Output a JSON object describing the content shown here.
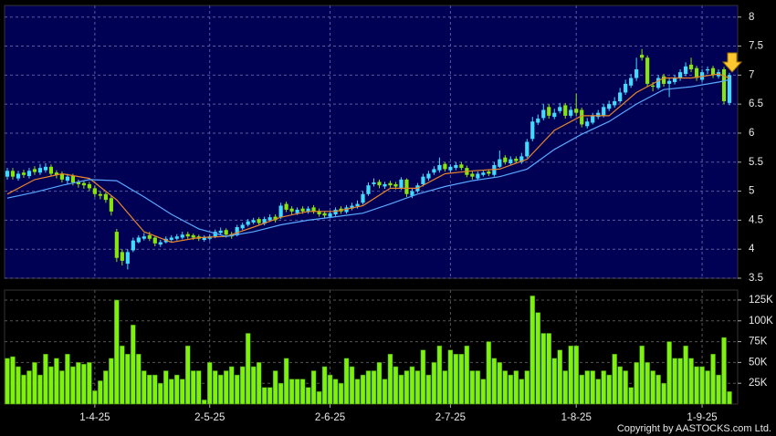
{
  "chart_data": [
    {
      "type": "candlestick",
      "xlim": [
        -0.5,
        133.5
      ],
      "ylim": [
        3.5,
        8.2
      ],
      "yticks": [
        3.5,
        4,
        4.5,
        5,
        5.5,
        6,
        6.5,
        7,
        7.5,
        8
      ],
      "grid": true,
      "up_color": "#3fdcff",
      "down_color": "#86e60c",
      "open": [
        5.25,
        5.35,
        5.22,
        5.32,
        5.26,
        5.38,
        5.32,
        5.36,
        5.42,
        5.32,
        5.3,
        5.18,
        5.26,
        5.16,
        5.14,
        5.12,
        5.05,
        4.95,
        4.95,
        4.88,
        4.3,
        3.95,
        3.75,
        3.98,
        4.12,
        4.18,
        4.24,
        4.2,
        4.08,
        4.12,
        4.16,
        4.18,
        4.2,
        4.26,
        4.24,
        4.22,
        4.16,
        4.18,
        4.22,
        4.28,
        4.33,
        4.26,
        4.24,
        4.36,
        4.42,
        4.46,
        4.52,
        4.44,
        4.5,
        4.56,
        4.55,
        4.78,
        4.7,
        4.62,
        4.7,
        4.64,
        4.72,
        4.66,
        4.62,
        4.56,
        4.6,
        4.7,
        4.64,
        4.7,
        4.74,
        4.8,
        4.95,
        5.12,
        5.16,
        5.08,
        5.14,
        5.12,
        5.05,
        5.2,
        4.92,
        5.0,
        5.12,
        5.22,
        5.32,
        5.36,
        5.47,
        5.36,
        5.4,
        5.46,
        5.4,
        5.3,
        5.22,
        5.28,
        5.34,
        5.28,
        5.42,
        5.58,
        5.48,
        5.56,
        5.5,
        5.6,
        5.9,
        6.18,
        6.26,
        6.45,
        6.28,
        6.38,
        6.48,
        6.3,
        6.42,
        6.4,
        6.12,
        6.18,
        6.28,
        6.3,
        6.42,
        6.48,
        6.55,
        6.7,
        6.82,
        6.95,
        7.35,
        7.3,
        6.82,
        6.78,
        6.98,
        6.85,
        6.88,
        6.95,
        7.02,
        7.18,
        7.12,
        6.92,
        7.08,
        7.12,
        6.98,
        7.1,
        6.52
      ],
      "high": [
        5.4,
        5.4,
        5.35,
        5.37,
        5.4,
        5.43,
        5.47,
        5.48,
        5.46,
        5.36,
        5.34,
        5.3,
        5.3,
        5.2,
        5.18,
        5.16,
        5.1,
        5.0,
        4.98,
        4.92,
        4.35,
        4.0,
        4.0,
        4.2,
        4.24,
        4.28,
        4.3,
        4.22,
        4.16,
        4.22,
        4.24,
        4.26,
        4.3,
        4.3,
        4.27,
        4.25,
        4.24,
        4.26,
        4.34,
        4.37,
        4.36,
        4.3,
        4.42,
        4.46,
        4.52,
        4.54,
        4.55,
        4.56,
        4.6,
        4.6,
        4.8,
        4.82,
        4.74,
        4.72,
        4.74,
        4.74,
        4.76,
        4.7,
        4.66,
        4.66,
        4.72,
        4.74,
        4.76,
        4.8,
        4.84,
        5.0,
        5.15,
        5.22,
        5.2,
        5.16,
        5.18,
        5.16,
        5.24,
        5.22,
        5.05,
        5.14,
        5.3,
        5.35,
        5.43,
        5.58,
        5.5,
        5.46,
        5.5,
        5.5,
        5.44,
        5.34,
        5.34,
        5.36,
        5.38,
        5.5,
        5.7,
        5.62,
        5.6,
        5.6,
        5.66,
        5.9,
        6.28,
        6.32,
        6.5,
        6.5,
        6.42,
        6.52,
        6.52,
        6.46,
        6.68,
        6.44,
        6.26,
        6.35,
        6.4,
        6.5,
        6.56,
        6.62,
        6.78,
        6.92,
        7.02,
        7.3,
        7.45,
        7.34,
        6.88,
        7.0,
        7.02,
        6.95,
        7.0,
        7.1,
        7.22,
        7.3,
        7.16,
        7.1,
        7.15,
        7.16,
        7.1,
        7.14,
        7.04
      ],
      "low": [
        5.2,
        5.2,
        5.18,
        5.23,
        5.22,
        5.28,
        5.28,
        5.32,
        5.25,
        5.22,
        5.15,
        5.12,
        5.1,
        5.06,
        5.04,
        5.0,
        4.9,
        4.86,
        4.8,
        4.58,
        3.78,
        3.72,
        3.65,
        3.95,
        4.1,
        4.15,
        4.14,
        4.05,
        4.04,
        4.1,
        4.12,
        4.15,
        4.17,
        4.18,
        4.16,
        4.14,
        4.13,
        4.15,
        4.19,
        4.25,
        4.2,
        4.18,
        4.22,
        4.33,
        4.39,
        4.43,
        4.41,
        4.41,
        4.47,
        4.46,
        4.52,
        4.64,
        4.6,
        4.59,
        4.61,
        4.61,
        4.61,
        4.56,
        4.54,
        4.53,
        4.57,
        4.61,
        4.61,
        4.67,
        4.7,
        4.77,
        4.92,
        5.08,
        5.05,
        5.04,
        5.06,
        5.03,
        5.02,
        4.9,
        4.88,
        4.97,
        5.08,
        5.18,
        5.28,
        5.32,
        5.34,
        5.32,
        5.36,
        5.36,
        5.24,
        5.2,
        5.19,
        5.25,
        5.26,
        5.25,
        5.4,
        5.46,
        5.45,
        5.48,
        5.47,
        5.57,
        5.86,
        6.14,
        6.22,
        6.25,
        6.24,
        6.34,
        6.25,
        6.26,
        6.3,
        6.1,
        6.08,
        6.15,
        6.24,
        6.27,
        6.38,
        6.44,
        6.52,
        6.66,
        6.78,
        6.9,
        7.25,
        6.8,
        6.72,
        6.75,
        6.8,
        6.62,
        6.84,
        6.9,
        6.98,
        7.05,
        6.9,
        6.88,
        7.02,
        6.95,
        6.94,
        6.5,
        6.48
      ],
      "close": [
        5.35,
        5.25,
        5.3,
        5.28,
        5.35,
        5.33,
        5.4,
        5.42,
        5.3,
        5.28,
        5.2,
        5.25,
        5.15,
        5.12,
        5.1,
        5.05,
        4.95,
        4.92,
        4.85,
        4.65,
        3.85,
        3.8,
        3.95,
        4.15,
        4.2,
        4.22,
        4.18,
        4.1,
        4.12,
        4.18,
        4.2,
        4.22,
        4.25,
        4.22,
        4.2,
        4.18,
        4.2,
        4.22,
        4.3,
        4.32,
        4.25,
        4.22,
        4.38,
        4.42,
        4.48,
        4.5,
        4.45,
        4.52,
        4.55,
        4.5,
        4.75,
        4.68,
        4.65,
        4.68,
        4.65,
        4.7,
        4.65,
        4.6,
        4.58,
        4.62,
        4.68,
        4.65,
        4.72,
        4.75,
        4.78,
        4.95,
        5.1,
        5.15,
        5.1,
        5.12,
        5.1,
        5.08,
        5.2,
        4.95,
        5.0,
        5.1,
        5.25,
        5.3,
        5.38,
        5.45,
        5.38,
        5.42,
        5.45,
        5.4,
        5.28,
        5.25,
        5.3,
        5.32,
        5.3,
        5.45,
        5.55,
        5.5,
        5.55,
        5.52,
        5.6,
        5.85,
        6.2,
        6.25,
        6.4,
        6.3,
        6.35,
        6.45,
        6.3,
        6.4,
        6.35,
        6.15,
        6.2,
        6.3,
        6.35,
        6.45,
        6.5,
        6.55,
        6.7,
        6.85,
        6.95,
        7.1,
        7.3,
        6.85,
        6.8,
        6.95,
        6.85,
        6.9,
        6.95,
        7.05,
        7.15,
        7.1,
        6.95,
        7.05,
        7.1,
        7.0,
        7.05,
        6.55,
        7.0
      ],
      "series": [
        {
          "color": "#e8842c",
          "x": [
            0,
            5,
            10,
            15,
            20,
            25,
            30,
            35,
            40,
            45,
            50,
            55,
            60,
            65,
            70,
            75,
            80,
            85,
            90,
            95,
            100,
            105,
            110,
            115,
            120,
            125,
            130,
            132
          ],
          "values": [
            4.95,
            5.2,
            5.3,
            5.22,
            4.85,
            4.3,
            4.12,
            4.2,
            4.22,
            4.38,
            4.55,
            4.65,
            4.65,
            4.75,
            5.05,
            5.05,
            5.3,
            5.35,
            5.38,
            5.55,
            6.05,
            6.3,
            6.3,
            6.7,
            6.95,
            6.95,
            7.02,
            6.95
          ]
        },
        {
          "color": "#5aa8ff",
          "x": [
            0,
            5,
            10,
            15,
            20,
            25,
            30,
            35,
            40,
            45,
            50,
            55,
            60,
            65,
            70,
            75,
            80,
            85,
            90,
            95,
            100,
            105,
            110,
            115,
            120,
            125,
            130,
            132
          ],
          "values": [
            4.88,
            4.98,
            5.1,
            5.2,
            5.18,
            4.9,
            4.6,
            4.35,
            4.22,
            4.3,
            4.42,
            4.5,
            4.56,
            4.62,
            4.78,
            4.95,
            5.08,
            5.18,
            5.25,
            5.38,
            5.72,
            5.98,
            6.2,
            6.5,
            6.75,
            6.8,
            6.88,
            6.92
          ]
        }
      ]
    },
    {
      "type": "bar",
      "color": "#80f010",
      "xlim": [
        -0.5,
        133.5
      ],
      "ylim": [
        0,
        137000
      ],
      "yticks": [
        {
          "value": 25000,
          "label": "25K"
        },
        {
          "value": 50000,
          "label": "50K"
        },
        {
          "value": 75000,
          "label": "75K"
        },
        {
          "value": 100000,
          "label": "100K"
        },
        {
          "value": 125000,
          "label": "125K"
        }
      ],
      "xticks": [
        {
          "value": 16,
          "label": "1-4-25"
        },
        {
          "value": 37,
          "label": "2-5-25"
        },
        {
          "value": 59,
          "label": "2-6-25"
        },
        {
          "value": 81,
          "label": "2-7-25"
        },
        {
          "value": 104,
          "label": "1-8-25"
        },
        {
          "value": 127,
          "label": "1-9-25"
        }
      ],
      "grid": true,
      "values": [
        55000,
        57000,
        45000,
        35000,
        40000,
        50000,
        35000,
        60000,
        45000,
        55000,
        40000,
        60000,
        45000,
        50000,
        48000,
        50000,
        16000,
        28000,
        40000,
        55000,
        125000,
        70000,
        60000,
        95000,
        60000,
        40000,
        35000,
        35000,
        25000,
        40000,
        30000,
        35000,
        30000,
        70000,
        40000,
        40000,
        5000,
        50000,
        40000,
        35000,
        40000,
        45000,
        35000,
        45000,
        85000,
        45000,
        50000,
        20000,
        20000,
        40000,
        25000,
        55000,
        30000,
        30000,
        30000,
        20000,
        40000,
        15000,
        45000,
        35000,
        30000,
        25000,
        55000,
        45000,
        30000,
        35000,
        40000,
        40000,
        50000,
        30000,
        60000,
        45000,
        35000,
        40000,
        45000,
        40000,
        65000,
        35000,
        50000,
        70000,
        40000,
        65000,
        60000,
        60000,
        70000,
        40000,
        40000,
        30000,
        75000,
        55000,
        50000,
        40000,
        35000,
        40000,
        30000,
        40000,
        130000,
        110000,
        85000,
        85000,
        55000,
        65000,
        40000,
        70000,
        70000,
        35000,
        40000,
        40000,
        30000,
        40000,
        35000,
        60000,
        45000,
        40000,
        20000,
        50000,
        70000,
        50000,
        40000,
        35000,
        25000,
        75000,
        55000,
        55000,
        70000,
        55000,
        45000,
        45000,
        40000,
        60000,
        35000,
        80000,
        15000
      ]
    }
  ],
  "footer": "Copyright by AASTOCKS.com Ltd."
}
